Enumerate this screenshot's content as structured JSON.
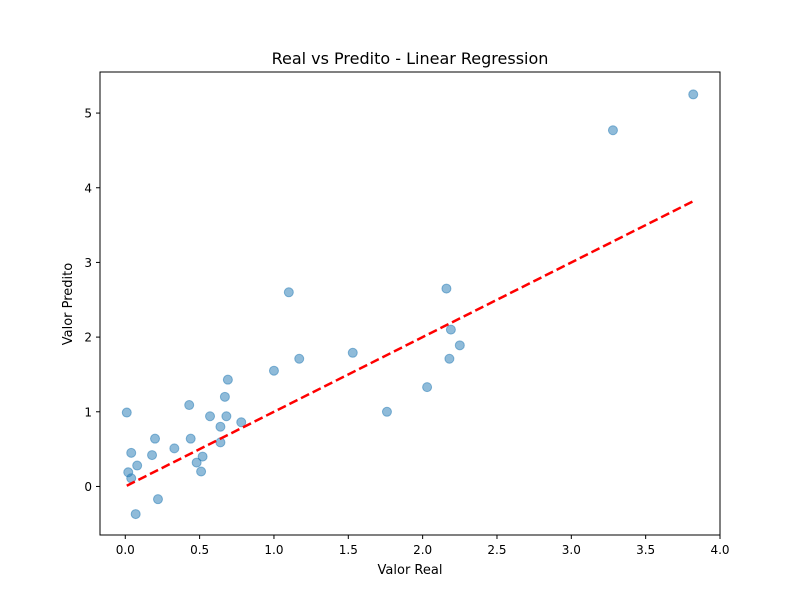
{
  "chart_data": {
    "type": "scatter",
    "title": "Real vs Predito - Linear Regression",
    "xlabel": "Valor Real",
    "ylabel": "Valor Predito",
    "xlim": [
      -0.17,
      4.0
    ],
    "ylim": [
      -0.65,
      5.55
    ],
    "xticks": [
      0.0,
      0.5,
      1.0,
      1.5,
      2.0,
      2.5,
      3.0,
      3.5,
      4.0
    ],
    "xtick_labels": [
      "0.0",
      "0.5",
      "1.0",
      "1.5",
      "2.0",
      "2.5",
      "3.0",
      "3.5",
      "4.0"
    ],
    "yticks": [
      0,
      1,
      2,
      3,
      4,
      5
    ],
    "ytick_labels": [
      "0",
      "1",
      "2",
      "3",
      "4",
      "5"
    ],
    "grid": false,
    "points": {
      "color": "#1f77b4",
      "alpha": 0.5,
      "x": [
        0.01,
        0.02,
        0.04,
        0.04,
        0.07,
        0.08,
        0.18,
        0.2,
        0.22,
        0.33,
        0.43,
        0.44,
        0.48,
        0.51,
        0.52,
        0.57,
        0.64,
        0.64,
        0.67,
        0.68,
        0.69,
        0.78,
        1.0,
        1.1,
        1.17,
        1.53,
        1.76,
        2.03,
        2.16,
        2.18,
        2.19,
        2.25,
        3.28,
        3.82
      ],
      "y": [
        0.99,
        0.19,
        0.45,
        0.11,
        -0.37,
        0.28,
        0.42,
        0.64,
        -0.17,
        0.51,
        1.09,
        0.64,
        0.32,
        0.2,
        0.4,
        0.94,
        0.59,
        0.8,
        1.2,
        0.94,
        1.43,
        0.86,
        1.55,
        2.6,
        1.71,
        1.79,
        1.0,
        1.33,
        2.65,
        1.71,
        2.1,
        1.89,
        4.77,
        5.25
      ]
    },
    "reference_line": {
      "style": "dashed",
      "color": "#ff0000",
      "x": [
        0.01,
        3.82
      ],
      "y": [
        0.01,
        3.82
      ]
    }
  }
}
